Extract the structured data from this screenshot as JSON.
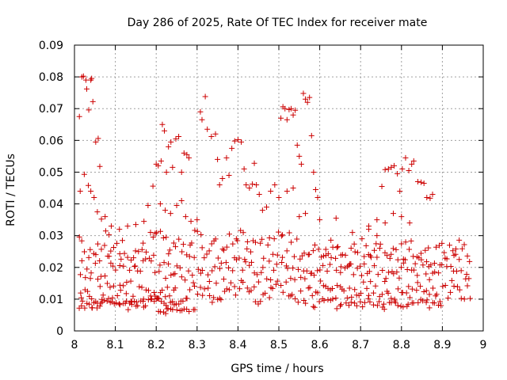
{
  "chart_data": {
    "type": "scatter",
    "title": "Day 286 of 2025, Rate Of TEC Index for receiver mate",
    "xlabel": "GPS time / hours",
    "ylabel": "ROTI / TECUs",
    "xlim": [
      8.0,
      9.0
    ],
    "ylim": [
      0.0,
      0.09
    ],
    "x_ticks": [
      8.0,
      8.1,
      8.2,
      8.3,
      8.4,
      8.5,
      8.6,
      8.7,
      8.8,
      8.9,
      9.0
    ],
    "x_tick_labels": [
      "8",
      "8.1",
      "8.2",
      "8.3",
      "8.4",
      "8.5",
      "8.6",
      "8.7",
      "8.8",
      "8.9",
      "9"
    ],
    "y_ticks": [
      0,
      0.01,
      0.02,
      0.03,
      0.04,
      0.05,
      0.06,
      0.07,
      0.08,
      0.09
    ],
    "y_tick_labels": [
      "0",
      "0.01",
      "0.02",
      "0.03",
      "0.04",
      "0.05",
      "0.06",
      "0.07",
      "0.08",
      "0.09"
    ],
    "grid": true,
    "marker": "+",
    "marker_color": "#cc0000",
    "series": [
      {
        "name": "ROTI",
        "x_range": [
          8.01,
          8.97
        ],
        "bands": [
          {
            "from": 8.01,
            "to": 8.97,
            "y_mid": 0.012,
            "y_spread": 0.004,
            "count": 160
          },
          {
            "from": 8.01,
            "to": 8.97,
            "y_mid": 0.0195,
            "y_spread": 0.005,
            "count": 160
          },
          {
            "from": 8.01,
            "to": 8.6,
            "y_mid": 0.027,
            "y_spread": 0.005,
            "count": 90
          },
          {
            "from": 8.6,
            "to": 8.97,
            "y_mid": 0.025,
            "y_spread": 0.0045,
            "count": 60
          },
          {
            "from": 8.01,
            "to": 8.25,
            "y_mid": 0.0085,
            "y_spread": 0.002,
            "count": 50
          },
          {
            "from": 8.58,
            "to": 8.9,
            "y_mid": 0.0085,
            "y_spread": 0.002,
            "count": 45
          },
          {
            "from": 8.2,
            "to": 8.3,
            "y_mid": 0.0065,
            "y_spread": 0.0015,
            "count": 15
          }
        ],
        "points": [
          [
            8.012,
            0.0675
          ],
          [
            8.018,
            0.08
          ],
          [
            8.022,
            0.0802
          ],
          [
            8.028,
            0.079
          ],
          [
            8.03,
            0.0762
          ],
          [
            8.035,
            0.0696
          ],
          [
            8.04,
            0.079
          ],
          [
            8.042,
            0.0795
          ],
          [
            8.045,
            0.0722
          ],
          [
            8.052,
            0.0595
          ],
          [
            8.058,
            0.0606
          ],
          [
            8.062,
            0.0518
          ],
          [
            8.014,
            0.044
          ],
          [
            8.024,
            0.0493
          ],
          [
            8.034,
            0.0458
          ],
          [
            8.04,
            0.044
          ],
          [
            8.048,
            0.042
          ],
          [
            8.056,
            0.0375
          ],
          [
            8.066,
            0.0352
          ],
          [
            8.075,
            0.036
          ],
          [
            8.09,
            0.033
          ],
          [
            8.11,
            0.032
          ],
          [
            8.13,
            0.033
          ],
          [
            8.15,
            0.0335
          ],
          [
            8.17,
            0.0345
          ],
          [
            8.18,
            0.0395
          ],
          [
            8.192,
            0.0456
          ],
          [
            8.2,
            0.0525
          ],
          [
            8.205,
            0.052
          ],
          [
            8.212,
            0.0535
          ],
          [
            8.215,
            0.065
          ],
          [
            8.22,
            0.063
          ],
          [
            8.225,
            0.05
          ],
          [
            8.23,
            0.058
          ],
          [
            8.236,
            0.0595
          ],
          [
            8.24,
            0.0515
          ],
          [
            8.248,
            0.0605
          ],
          [
            8.255,
            0.0612
          ],
          [
            8.262,
            0.05
          ],
          [
            8.268,
            0.056
          ],
          [
            8.275,
            0.0555
          ],
          [
            8.28,
            0.0545
          ],
          [
            8.21,
            0.04
          ],
          [
            8.222,
            0.038
          ],
          [
            8.235,
            0.037
          ],
          [
            8.25,
            0.0395
          ],
          [
            8.262,
            0.041
          ],
          [
            8.272,
            0.036
          ],
          [
            8.285,
            0.0345
          ],
          [
            8.3,
            0.035
          ],
          [
            8.308,
            0.069
          ],
          [
            8.312,
            0.0665
          ],
          [
            8.32,
            0.0738
          ],
          [
            8.325,
            0.0635
          ],
          [
            8.335,
            0.0612
          ],
          [
            8.345,
            0.062
          ],
          [
            8.35,
            0.054
          ],
          [
            8.355,
            0.046
          ],
          [
            8.362,
            0.048
          ],
          [
            8.372,
            0.0545
          ],
          [
            8.378,
            0.049
          ],
          [
            8.385,
            0.0575
          ],
          [
            8.392,
            0.0598
          ],
          [
            8.4,
            0.0602
          ],
          [
            8.408,
            0.0595
          ],
          [
            8.415,
            0.051
          ],
          [
            8.42,
            0.046
          ],
          [
            8.428,
            0.045
          ],
          [
            8.435,
            0.0462
          ],
          [
            8.44,
            0.0528
          ],
          [
            8.445,
            0.046
          ],
          [
            8.452,
            0.043
          ],
          [
            8.46,
            0.038
          ],
          [
            8.47,
            0.039
          ],
          [
            8.48,
            0.044
          ],
          [
            8.49,
            0.046
          ],
          [
            8.5,
            0.042
          ],
          [
            8.505,
            0.067
          ],
          [
            8.51,
            0.0706
          ],
          [
            8.515,
            0.07
          ],
          [
            8.52,
            0.0665
          ],
          [
            8.525,
            0.0697
          ],
          [
            8.53,
            0.07
          ],
          [
            8.535,
            0.068
          ],
          [
            8.54,
            0.0695
          ],
          [
            8.545,
            0.0585
          ],
          [
            8.55,
            0.055
          ],
          [
            8.555,
            0.0525
          ],
          [
            8.56,
            0.0748
          ],
          [
            8.565,
            0.073
          ],
          [
            8.57,
            0.072
          ],
          [
            8.575,
            0.0735
          ],
          [
            8.58,
            0.0615
          ],
          [
            8.585,
            0.05
          ],
          [
            8.59,
            0.0445
          ],
          [
            8.595,
            0.042
          ],
          [
            8.52,
            0.044
          ],
          [
            8.535,
            0.045
          ],
          [
            8.55,
            0.036
          ],
          [
            8.565,
            0.037
          ],
          [
            8.6,
            0.035
          ],
          [
            8.64,
            0.0355
          ],
          [
            8.68,
            0.031
          ],
          [
            8.72,
            0.032
          ],
          [
            8.74,
            0.03
          ],
          [
            8.752,
            0.0455
          ],
          [
            8.76,
            0.0508
          ],
          [
            8.768,
            0.051
          ],
          [
            8.775,
            0.0515
          ],
          [
            8.782,
            0.052
          ],
          [
            8.79,
            0.0495
          ],
          [
            8.796,
            0.044
          ],
          [
            8.802,
            0.051
          ],
          [
            8.81,
            0.0545
          ],
          [
            8.818,
            0.0505
          ],
          [
            8.825,
            0.0525
          ],
          [
            8.83,
            0.0535
          ],
          [
            8.84,
            0.047
          ],
          [
            8.848,
            0.0468
          ],
          [
            8.855,
            0.0465
          ],
          [
            8.862,
            0.042
          ],
          [
            8.87,
            0.0418
          ],
          [
            8.876,
            0.043
          ],
          [
            8.78,
            0.037
          ],
          [
            8.8,
            0.036
          ],
          [
            8.82,
            0.034
          ],
          [
            8.74,
            0.035
          ],
          [
            8.72,
            0.033
          ],
          [
            8.76,
            0.034
          ]
        ]
      }
    ]
  }
}
